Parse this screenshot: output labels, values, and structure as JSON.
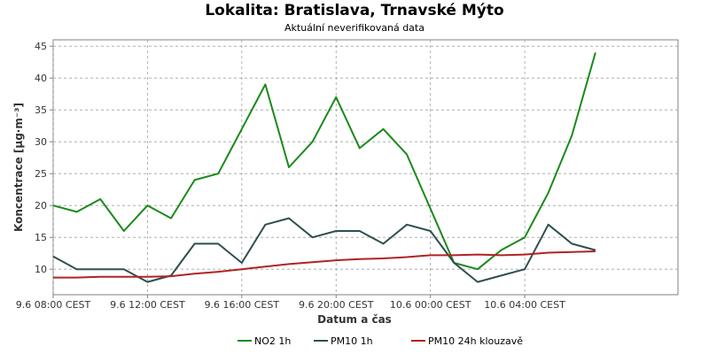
{
  "chart_data": {
    "type": "line",
    "title": "Lokalita: Bratislava, Trnavské Mýto",
    "subtitle": "Aktuální neverifikovaná data",
    "xlabel": "Datum a čas",
    "ylabel": "Koncentrace [µg·m⁻³]",
    "ylim": [
      6,
      46
    ],
    "y_ticks": [
      10,
      15,
      20,
      25,
      30,
      35,
      40,
      45
    ],
    "x_start": "9.6 08:00",
    "x_end": "10.6 10:30",
    "x_tick_labels": [
      "9.6 08:00 CEST",
      "9.6 12:00 CEST",
      "9.6 16:00 CEST",
      "9.6 20:00 CEST",
      "10.6 00:00 CEST",
      "10.6 04:00 CEST"
    ],
    "x_ticks": [
      "9.6 08:00",
      "9.6 12:00",
      "9.6 16:00",
      "9.6 20:00",
      "10.6 00:00",
      "10.6 04:00"
    ],
    "grid": true,
    "legend_position": "bottom",
    "series": [
      {
        "name": "NO2 1h",
        "color": "#1a8a1a",
        "x": [
          "9.6 08:00",
          "9.6 09:00",
          "9.6 10:00",
          "9.6 11:00",
          "9.6 12:00",
          "9.6 13:00",
          "9.6 14:00",
          "9.6 15:00",
          "9.6 16:00",
          "9.6 17:00",
          "9.6 18:00",
          "9.6 19:00",
          "9.6 20:00",
          "9.6 21:00",
          "9.6 22:00",
          "9.6 23:00",
          "10.6 01:00",
          "10.6 02:00",
          "10.6 03:00",
          "10.6 04:00",
          "10.6 05:00",
          "10.6 06:00",
          "10.6 07:00"
        ],
        "values": [
          20,
          19,
          21,
          16,
          20,
          18,
          24,
          25,
          32,
          39,
          26,
          30,
          37,
          29,
          32,
          28,
          11,
          10,
          13,
          15,
          22,
          31,
          44
        ]
      },
      {
        "name": "PM10 1h",
        "color": "#2f4f4f",
        "x": [
          "9.6 08:00",
          "9.6 09:00",
          "9.6 10:00",
          "9.6 11:00",
          "9.6 12:00",
          "9.6 13:00",
          "9.6 14:00",
          "9.6 15:00",
          "9.6 16:00",
          "9.6 17:00",
          "9.6 18:00",
          "9.6 19:00",
          "9.6 20:00",
          "9.6 21:00",
          "9.6 22:00",
          "9.6 23:00",
          "10.6 00:00",
          "10.6 01:00",
          "10.6 02:00",
          "10.6 03:00",
          "10.6 04:00",
          "10.6 05:00",
          "10.6 06:00",
          "10.6 07:00"
        ],
        "values": [
          12,
          10,
          10,
          10,
          8,
          9,
          14,
          14,
          11,
          17,
          18,
          15,
          16,
          16,
          14,
          17,
          16,
          11,
          8,
          9,
          10,
          17,
          14,
          13
        ]
      },
      {
        "name": "PM10 24h klouzavě",
        "color": "#b22222",
        "x": [
          "9.6 08:00",
          "9.6 09:00",
          "9.6 10:00",
          "9.6 11:00",
          "9.6 12:00",
          "9.6 13:00",
          "9.6 14:00",
          "9.6 15:00",
          "9.6 16:00",
          "9.6 17:00",
          "9.6 18:00",
          "9.6 19:00",
          "9.6 20:00",
          "9.6 21:00",
          "9.6 22:00",
          "9.6 23:00",
          "10.6 00:00",
          "10.6 01:00",
          "10.6 02:00",
          "10.6 03:00",
          "10.6 04:00",
          "10.6 05:00",
          "10.6 06:00",
          "10.6 07:00"
        ],
        "values": [
          8.7,
          8.7,
          8.8,
          8.8,
          8.8,
          8.9,
          9.3,
          9.6,
          10.0,
          10.4,
          10.8,
          11.1,
          11.4,
          11.6,
          11.7,
          11.9,
          12.2,
          12.2,
          12.3,
          12.2,
          12.3,
          12.6,
          12.7,
          12.8
        ]
      }
    ]
  }
}
